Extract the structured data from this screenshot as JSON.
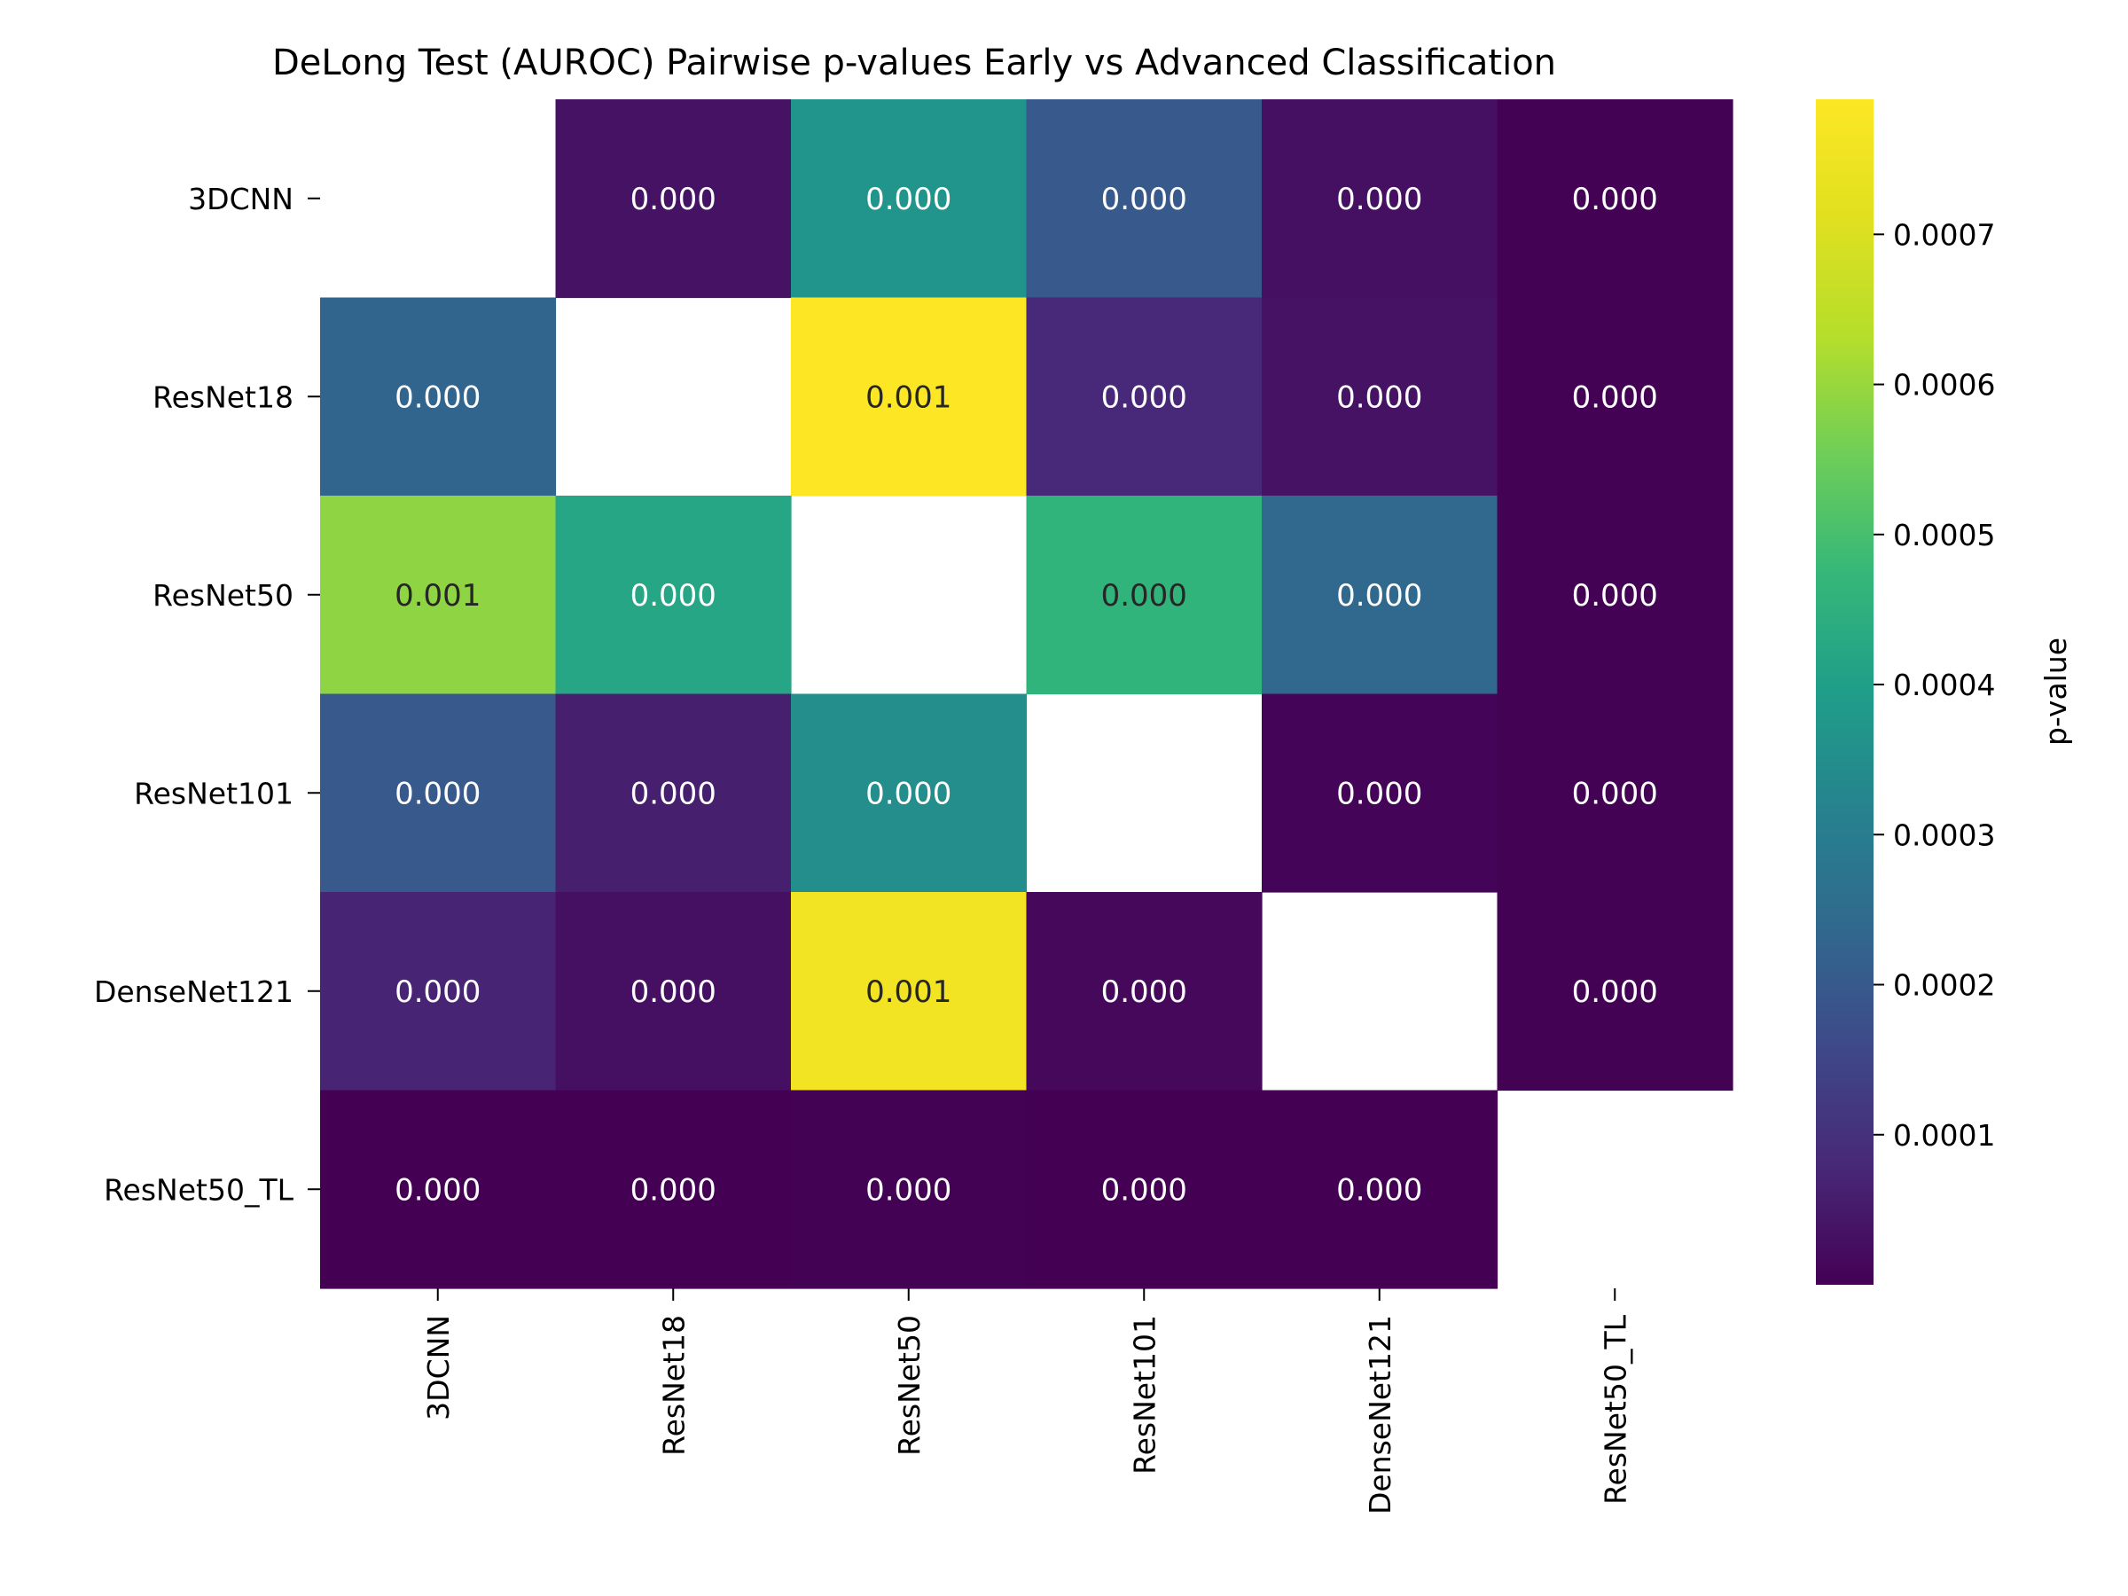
{
  "chart_data": {
    "type": "heatmap",
    "title": "DeLong Test (AUROC) Pairwise p-values Early vs Advanced Classification",
    "rows": [
      "3DCNN",
      "ResNet18",
      "ResNet50",
      "ResNet101",
      "DenseNet121",
      "ResNet50_TL"
    ],
    "cols": [
      "3DCNN",
      "ResNet18",
      "ResNet50",
      "ResNet101",
      "DenseNet121",
      "ResNet50_TL"
    ],
    "values": [
      [
        null,
        3.5e-05,
        0.00037,
        0.0002,
        3e-05,
        2e-06
      ],
      [
        0.00023,
        null,
        0.00079,
        8e-05,
        3.5e-05,
        2e-06
      ],
      [
        0.00059,
        0.00042,
        null,
        0.00046,
        0.00024,
        2e-06
      ],
      [
        0.0002,
        6e-05,
        0.00035,
        null,
        8e-06,
        3e-06
      ],
      [
        7e-05,
        3e-05,
        0.00076,
        1.5e-05,
        null,
        3e-06
      ],
      [
        1e-06,
        1e-06,
        2e-06,
        1e-06,
        1e-06,
        null
      ]
    ],
    "annotations": [
      [
        "",
        "0.000",
        "0.000",
        "0.000",
        "0.000",
        "0.000"
      ],
      [
        "0.000",
        "",
        "0.001",
        "0.000",
        "0.000",
        "0.000"
      ],
      [
        "0.001",
        "0.000",
        "",
        "0.000",
        "0.000",
        "0.000"
      ],
      [
        "0.000",
        "0.000",
        "0.000",
        "",
        "0.000",
        "0.000"
      ],
      [
        "0.000",
        "0.000",
        "0.001",
        "0.000",
        "",
        "0.000"
      ],
      [
        "0.000",
        "0.000",
        "0.000",
        "0.000",
        "0.000",
        ""
      ]
    ],
    "colormap": "viridis",
    "colorbar": {
      "label": "p-value",
      "min": 0.0,
      "max": 0.00079,
      "ticks": [
        "0.0001",
        "0.0002",
        "0.0003",
        "0.0004",
        "0.0005",
        "0.0006",
        "0.0007"
      ]
    }
  }
}
